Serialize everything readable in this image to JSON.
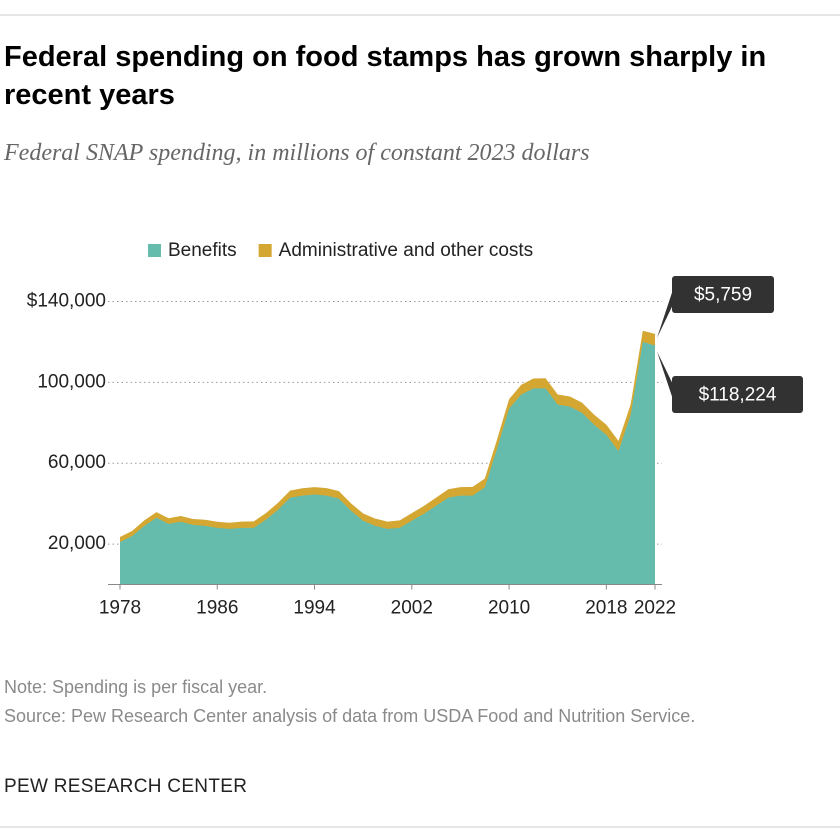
{
  "chart_data": {
    "type": "stacked_area",
    "title": "Federal spending on food stamps has grown sharply in recent years",
    "subtitle": "Federal SNAP spending, in millions of constant 2023 dollars",
    "x": [
      1978,
      1979,
      1980,
      1981,
      1982,
      1983,
      1984,
      1985,
      1986,
      1987,
      1988,
      1989,
      1990,
      1991,
      1992,
      1993,
      1994,
      1995,
      1996,
      1997,
      1998,
      1999,
      2000,
      2001,
      2002,
      2003,
      2004,
      2005,
      2006,
      2007,
      2008,
      2009,
      2010,
      2011,
      2012,
      2013,
      2014,
      2015,
      2016,
      2017,
      2018,
      2019,
      2020,
      2021,
      2022
    ],
    "series": [
      {
        "name": "Benefits",
        "color": "#66bcac",
        "values": [
          21000,
          24000,
          29000,
          33000,
          30000,
          31000,
          29500,
          29000,
          28000,
          27500,
          28000,
          28000,
          32000,
          37000,
          43000,
          44000,
          44500,
          44000,
          42500,
          36500,
          31500,
          29000,
          27500,
          28000,
          31500,
          35000,
          39000,
          43000,
          44000,
          44000,
          48000,
          67000,
          87000,
          94000,
          97000,
          97000,
          89000,
          88000,
          85000,
          79000,
          74000,
          66000,
          84000,
          120000,
          118224
        ],
        "value_labels": [
          null,
          null,
          null,
          null,
          null,
          null,
          null,
          null,
          null,
          null,
          null,
          null,
          null,
          null,
          null,
          null,
          null,
          null,
          null,
          null,
          null,
          null,
          null,
          null,
          null,
          null,
          null,
          null,
          null,
          null,
          null,
          null,
          null,
          null,
          null,
          null,
          null,
          null,
          null,
          null,
          null,
          null,
          null,
          null,
          "$118,224"
        ]
      },
      {
        "name": "Administrative and other costs",
        "color": "#d4a733",
        "values": [
          2500,
          2500,
          2700,
          2800,
          2800,
          2900,
          2900,
          3000,
          3000,
          3000,
          3100,
          3200,
          3300,
          3400,
          3500,
          3600,
          3700,
          3700,
          3700,
          3600,
          3600,
          3600,
          3600,
          3700,
          3800,
          3900,
          4000,
          4100,
          4200,
          4300,
          4400,
          4500,
          4700,
          4800,
          4900,
          5000,
          5000,
          5000,
          5000,
          5000,
          5000,
          5000,
          5200,
          5500,
          5759
        ],
        "value_labels": [
          null,
          null,
          null,
          null,
          null,
          null,
          null,
          null,
          null,
          null,
          null,
          null,
          null,
          null,
          null,
          null,
          null,
          null,
          null,
          null,
          null,
          null,
          null,
          null,
          null,
          null,
          null,
          null,
          null,
          null,
          null,
          null,
          null,
          null,
          null,
          null,
          null,
          null,
          null,
          null,
          null,
          null,
          null,
          null,
          "$5,759"
        ]
      }
    ],
    "xlim": [
      1978,
      2022
    ],
    "xticks": [
      1978,
      1986,
      1994,
      2002,
      2010,
      2018,
      2022
    ],
    "ylim": [
      0,
      140000
    ],
    "yticks": [
      {
        "value": 20000,
        "label": "20,000"
      },
      {
        "value": 60000,
        "label": "60,000"
      },
      {
        "value": 100000,
        "label": "100,000"
      },
      {
        "value": 140000,
        "label": "$140,000"
      }
    ],
    "grid": true,
    "legend": "top",
    "note": "Note: Spending is per fiscal year.",
    "source": "Source: Pew Research Center analysis of data from USDA Food and Nutrition Service.",
    "credit": "PEW RESEARCH CENTER"
  }
}
